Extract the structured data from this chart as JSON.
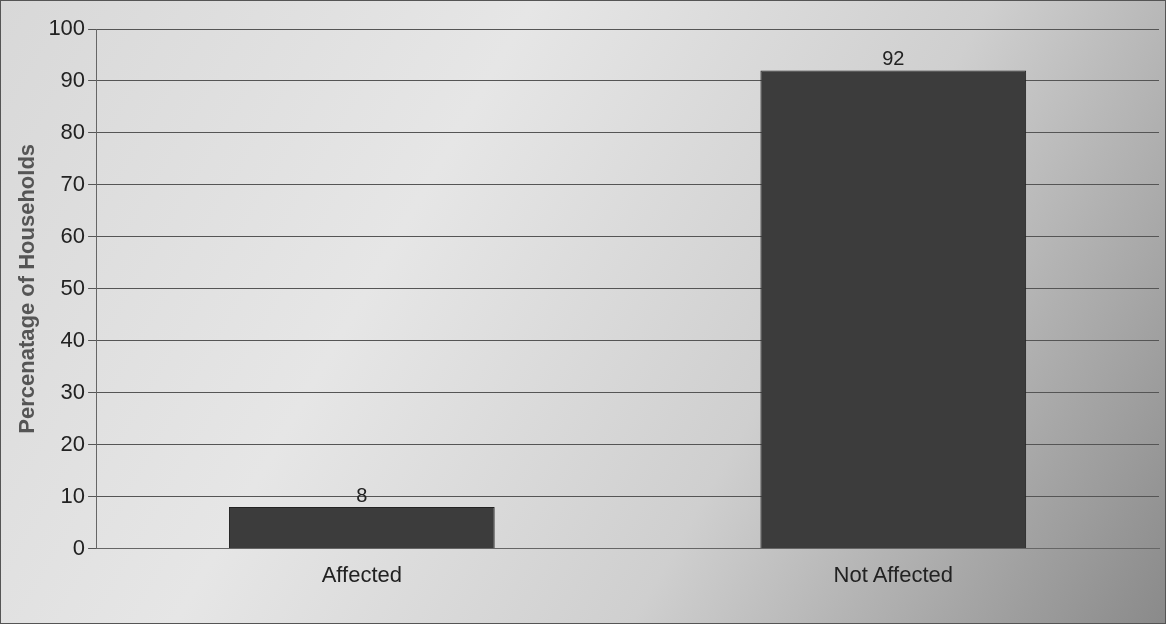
{
  "chart_data": {
    "type": "bar",
    "ylabel": "Percenatage of Households",
    "categories": [
      "Affected",
      "Not Affected"
    ],
    "values": [
      8,
      92
    ],
    "color": "#3c3c3c",
    "ylim": [
      0,
      100
    ],
    "yticks": [
      0,
      10,
      20,
      30,
      40,
      50,
      60,
      70,
      80,
      90,
      100
    ],
    "grid": "y",
    "data_labels": true
  }
}
